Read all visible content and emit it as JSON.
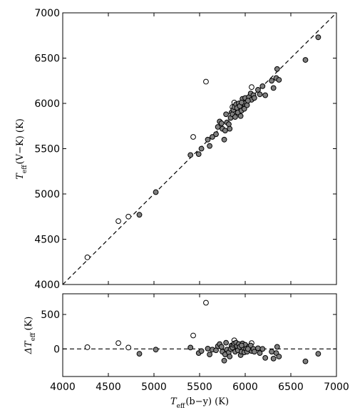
{
  "chart_data": [
    {
      "type": "scatter",
      "panel": "top",
      "title": "",
      "xlabel": "",
      "ylabel_main": "T",
      "ylabel_sub": "eff",
      "ylabel_rest": "(V−K) (K)",
      "xlim": [
        4000,
        7000
      ],
      "ylim": [
        4000,
        7000
      ],
      "xticks": [
        "4000",
        "4500",
        "5000",
        "5500",
        "6000",
        "6500",
        "7000"
      ],
      "yticks": [
        "4000",
        "4500",
        "5000",
        "5500",
        "6000",
        "6500",
        "7000"
      ],
      "xtick_values": [
        4000,
        4500,
        5000,
        5500,
        6000,
        6500,
        7000
      ],
      "ytick_values": [
        4000,
        4500,
        5000,
        5500,
        6000,
        6500,
        7000
      ],
      "show_x_tick_labels": false,
      "reference_line": {
        "style": "dashed",
        "x": [
          4000,
          7000
        ],
        "y": [
          4000,
          7000
        ]
      },
      "series": [
        {
          "marker": "open-circle",
          "fill": "#ffffff",
          "points": [
            [
              4270,
              4300
            ],
            [
              4610,
              4700
            ],
            [
              4720,
              4750
            ],
            [
              5430,
              5630
            ],
            [
              5570,
              6240
            ],
            [
              5880,
              6010
            ],
            [
              6070,
              6180
            ],
            [
              5860,
              5960
            ]
          ]
        },
        {
          "marker": "filled-circle",
          "fill": "#7f7f7f",
          "points": [
            [
              4840,
              4770
            ],
            [
              5020,
              5020
            ],
            [
              5400,
              5430
            ],
            [
              5490,
              5440
            ],
            [
              5520,
              5500
            ],
            [
              5590,
              5600
            ],
            [
              5610,
              5530
            ],
            [
              5640,
              5630
            ],
            [
              5680,
              5660
            ],
            [
              5700,
              5740
            ],
            [
              5720,
              5800
            ],
            [
              5740,
              5780
            ],
            [
              5750,
              5720
            ],
            [
              5770,
              5600
            ],
            [
              5780,
              5700
            ],
            [
              5790,
              5880
            ],
            [
              5800,
              5790
            ],
            [
              5820,
              5770
            ],
            [
              5830,
              5720
            ],
            [
              5840,
              5840
            ],
            [
              5850,
              5900
            ],
            [
              5860,
              5880
            ],
            [
              5870,
              5930
            ],
            [
              5880,
              5960
            ],
            [
              5890,
              5850
            ],
            [
              5900,
              5990
            ],
            [
              5910,
              5950
            ],
            [
              5920,
              5900
            ],
            [
              5930,
              6000
            ],
            [
              5940,
              5970
            ],
            [
              5950,
              5860
            ],
            [
              5960,
              5920
            ],
            [
              5970,
              6050
            ],
            [
              5980,
              6000
            ],
            [
              5990,
              5940
            ],
            [
              6000,
              6060
            ],
            [
              6010,
              6010
            ],
            [
              6020,
              5980
            ],
            [
              6040,
              6070
            ],
            [
              6060,
              6110
            ],
            [
              6070,
              6040
            ],
            [
              6090,
              6090
            ],
            [
              6100,
              6060
            ],
            [
              6140,
              6150
            ],
            [
              6160,
              6100
            ],
            [
              6220,
              6090
            ],
            [
              6290,
              6250
            ],
            [
              6310,
              6170
            ],
            [
              6340,
              6280
            ],
            [
              6350,
              6380
            ],
            [
              6370,
              6260
            ],
            [
              6660,
              6480
            ],
            [
              6800,
              6730
            ],
            [
              6190,
              6190
            ],
            [
              5960,
              6010
            ],
            [
              6030,
              6030
            ]
          ]
        }
      ]
    },
    {
      "type": "scatter",
      "panel": "bottom",
      "title": "",
      "xlabel_main": "T",
      "xlabel_sub": "eff",
      "xlabel_rest": "(b−y) (K)",
      "ylabel_main": "ΔT",
      "ylabel_sub": "eff",
      "ylabel_rest": "(K)",
      "xlim": [
        4000,
        7000
      ],
      "ylim": [
        -400,
        800
      ],
      "xticks": [
        "4000",
        "4500",
        "5000",
        "5500",
        "6000",
        "6500",
        "7000"
      ],
      "yticks": [
        "0",
        "500"
      ],
      "xtick_values": [
        4000,
        4500,
        5000,
        5500,
        6000,
        6500,
        7000
      ],
      "ytick_values": [
        0,
        500
      ],
      "reference_line": {
        "style": "dashed",
        "x": [
          4000,
          7000
        ],
        "y": [
          0,
          0
        ]
      },
      "series": [
        {
          "marker": "open-circle",
          "fill": "#ffffff",
          "points": [
            [
              4270,
              25
            ],
            [
              4610,
              85
            ],
            [
              4720,
              20
            ],
            [
              5430,
              195
            ],
            [
              5570,
              670
            ],
            [
              5880,
              125
            ],
            [
              6070,
              85
            ],
            [
              5860,
              50
            ]
          ]
        },
        {
          "marker": "filled-circle",
          "fill": "#7f7f7f",
          "points": [
            [
              4840,
              -70
            ],
            [
              5020,
              -10
            ],
            [
              5400,
              20
            ],
            [
              5490,
              -60
            ],
            [
              5520,
              -30
            ],
            [
              5590,
              5
            ],
            [
              5610,
              -80
            ],
            [
              5640,
              -10
            ],
            [
              5680,
              -20
            ],
            [
              5700,
              40
            ],
            [
              5720,
              70
            ],
            [
              5740,
              30
            ],
            [
              5750,
              -40
            ],
            [
              5770,
              -170
            ],
            [
              5780,
              -80
            ],
            [
              5790,
              90
            ],
            [
              5800,
              -10
            ],
            [
              5820,
              -50
            ],
            [
              5830,
              -110
            ],
            [
              5840,
              0
            ],
            [
              5850,
              50
            ],
            [
              5860,
              20
            ],
            [
              5870,
              60
            ],
            [
              5880,
              80
            ],
            [
              5890,
              -40
            ],
            [
              5900,
              90
            ],
            [
              5910,
              40
            ],
            [
              5920,
              -20
            ],
            [
              5930,
              70
            ],
            [
              5940,
              30
            ],
            [
              5950,
              -90
            ],
            [
              5960,
              -40
            ],
            [
              5970,
              80
            ],
            [
              5980,
              20
            ],
            [
              5990,
              -50
            ],
            [
              6000,
              60
            ],
            [
              6010,
              0
            ],
            [
              6020,
              -40
            ],
            [
              6040,
              30
            ],
            [
              6060,
              50
            ],
            [
              6070,
              -30
            ],
            [
              6090,
              0
            ],
            [
              6100,
              -40
            ],
            [
              6140,
              10
            ],
            [
              6160,
              -60
            ],
            [
              6220,
              -130
            ],
            [
              6290,
              -40
            ],
            [
              6310,
              -140
            ],
            [
              6340,
              -60
            ],
            [
              6350,
              30
            ],
            [
              6370,
              -110
            ],
            [
              6660,
              -180
            ],
            [
              6800,
              -70
            ],
            [
              6190,
              0
            ],
            [
              5960,
              50
            ],
            [
              6030,
              0
            ]
          ]
        }
      ]
    }
  ]
}
